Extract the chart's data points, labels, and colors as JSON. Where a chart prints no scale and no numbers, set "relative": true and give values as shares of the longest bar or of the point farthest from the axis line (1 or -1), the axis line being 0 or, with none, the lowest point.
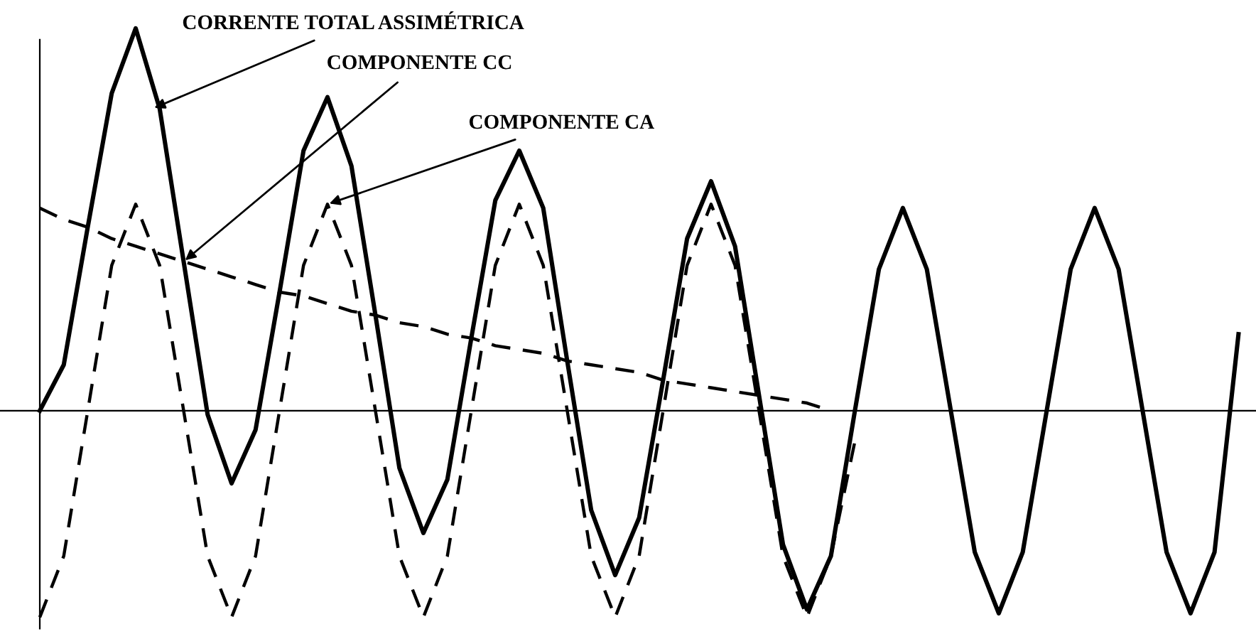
{
  "chart_data": {
    "type": "line",
    "relative": true,
    "legend": false,
    "grid": false,
    "marker": "none",
    "categories": [
      null,
      null,
      null,
      null,
      null,
      null,
      null,
      null,
      null,
      null,
      null,
      null,
      null,
      null,
      null,
      null,
      null,
      null,
      null,
      null,
      null,
      null,
      null,
      null,
      null,
      null,
      null,
      null,
      null,
      null,
      null,
      null,
      null,
      null,
      null,
      null,
      null,
      null,
      null,
      null,
      null,
      null,
      null,
      null,
      null,
      null,
      null,
      null,
      null,
      null,
      null
    ],
    "series": [
      {
        "name": "CORRENTE TOTAL ASSIMÉTRICA",
        "color": "#000000",
        "line_style": "solid",
        "values": [
          0,
          0.12,
          0.48,
          0.83,
          1.0,
          0.79,
          0.39,
          -0.01,
          -0.19,
          -0.05,
          0.31,
          0.68,
          0.82,
          0.64,
          0.25,
          -0.15,
          -0.32,
          -0.18,
          0.19,
          0.55,
          0.68,
          0.53,
          0.13,
          -0.26,
          -0.43,
          -0.28,
          0.08,
          0.45,
          0.6,
          0.43,
          0.04,
          -0.35,
          -0.52,
          -0.38,
          0,
          0.37,
          0.53,
          0.37,
          0,
          -0.37,
          -0.53,
          -0.37,
          0,
          0.37,
          0.53,
          0.37,
          0,
          -0.37,
          -0.53,
          -0.37,
          0.2
        ]
      },
      {
        "name": "COMPONENTE CC",
        "color": "#000000",
        "line_style": "dashed",
        "values": [
          0.53,
          0.5,
          0.48,
          0.45,
          0.43,
          0.41,
          0.39,
          0.37,
          0.35,
          0.33,
          0.31,
          0.3,
          0.28,
          0.26,
          0.25,
          0.23,
          0.22,
          0.2,
          0.19,
          0.17,
          0.16,
          0.15,
          0.13,
          0.12,
          0.11,
          0.1,
          0.08,
          0.07,
          0.06,
          0.05,
          0.04,
          0.03,
          0.02,
          0,
          null,
          null,
          null,
          null,
          null,
          null,
          null,
          null,
          null,
          null,
          null,
          null,
          null,
          null,
          null,
          null,
          null
        ]
      },
      {
        "name": "COMPONENTE CA",
        "color": "#000000",
        "line_style": "dashed",
        "values": [
          -0.54,
          -0.38,
          0,
          0.38,
          0.54,
          0.38,
          0,
          -0.38,
          -0.54,
          -0.38,
          0,
          0.38,
          0.54,
          0.38,
          0,
          -0.38,
          -0.54,
          -0.38,
          0,
          0.38,
          0.54,
          0.38,
          0,
          -0.38,
          -0.54,
          -0.38,
          0,
          0.38,
          0.54,
          0.38,
          0,
          -0.38,
          -0.54,
          -0.38,
          -0.08,
          null,
          null,
          null,
          null,
          null,
          null,
          null,
          null,
          null,
          null,
          null,
          null,
          null,
          null,
          null,
          null
        ]
      }
    ]
  }
}
